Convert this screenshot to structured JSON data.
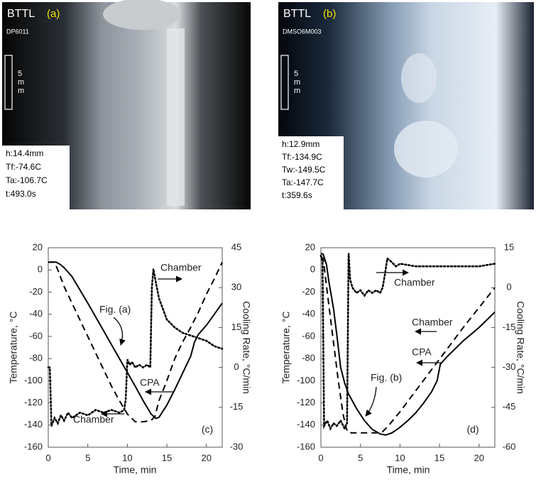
{
  "panels": [
    {
      "brand": "BTTL",
      "label": "(a)",
      "sample": "DP6011",
      "scale": [
        "5",
        "m",
        "m"
      ],
      "readouts": [
        "h:14.4mm",
        "Tf:-74.6C",
        "Ta:-106.7C",
        "t:493.0s"
      ]
    },
    {
      "brand": "BTTL",
      "label": "(b)",
      "sample": "DMSO6M003",
      "scale": [
        "5",
        "m",
        "m"
      ],
      "readouts": [
        "h:12.9mm",
        "Tf:-134.9C",
        "Tw:-149.5C",
        "Ta:-147.7C",
        "t:359.6s"
      ]
    }
  ],
  "chart_data": [
    {
      "type": "line",
      "panel_label": "(c)",
      "annotation": "Fig. (a)",
      "xlabel": "Time, min",
      "ylabel": "Temperature, °C",
      "y2label": "Cooling Rate, °C/min",
      "xlim": [
        0,
        22
      ],
      "xticks": [
        0,
        5,
        10,
        15,
        20
      ],
      "ylim": [
        -160,
        20
      ],
      "yticks": [
        -160,
        -140,
        -120,
        -100,
        -80,
        -60,
        -40,
        -20,
        0,
        20
      ],
      "y2lim": [
        -30,
        45
      ],
      "y2ticks": [
        -30,
        -15,
        0,
        15,
        30,
        45
      ],
      "series": [
        {
          "name": "CPA",
          "color": "#000000",
          "style": "solid",
          "x": [
            0,
            1,
            1.5,
            2,
            3,
            5,
            7,
            9,
            11,
            12,
            13,
            13.6,
            14,
            15,
            16,
            17,
            18,
            18.5,
            19,
            20,
            21,
            22
          ],
          "values": [
            7,
            7,
            5,
            2,
            -6,
            -30,
            -55,
            -80,
            -105,
            -118,
            -130,
            -134,
            -133,
            -122,
            -108,
            -93,
            -78,
            -65,
            -58,
            -50,
            -40,
            -30
          ]
        },
        {
          "name": "Chamber",
          "color": "#000000",
          "style": "dashed",
          "x": [
            0,
            0.8,
            1.2,
            2,
            4,
            6,
            8,
            9,
            10,
            11,
            12,
            13,
            13.5,
            14,
            15,
            16,
            17,
            18,
            19,
            20,
            21,
            22
          ],
          "values": [
            7,
            7,
            0,
            -15,
            -45,
            -75,
            -105,
            -118,
            -130,
            -137,
            -137,
            -136,
            -132,
            -118,
            -100,
            -80,
            -65,
            -52,
            -38,
            -22,
            -8,
            7
          ]
        },
        {
          "name": "Chamber",
          "color": "#000000",
          "style": "dotted",
          "axis": "y2",
          "x": [
            0,
            0.2,
            0.4,
            0.8,
            1.2,
            1.6,
            2,
            2.5,
            3,
            4,
            5,
            6,
            7,
            8,
            9,
            9.6,
            9.8,
            10,
            10.3,
            10.6,
            11,
            11.5,
            12,
            12.5,
            12.9,
            13.1,
            13.3,
            13.6,
            14,
            14.5,
            15,
            16,
            17,
            18,
            19,
            20,
            21,
            22
          ],
          "values": [
            0,
            0,
            -22,
            -19,
            -21,
            -18,
            -20,
            -17,
            -19,
            -17,
            -18,
            -16,
            -17,
            -16,
            -17,
            -16,
            -12,
            3,
            1,
            2,
            0,
            1,
            0,
            1,
            0,
            30,
            37,
            32,
            26,
            22,
            18,
            15,
            13,
            12,
            11,
            10,
            8,
            7
          ]
        }
      ]
    },
    {
      "type": "line",
      "panel_label": "(d)",
      "annotation": "Fig. (b)",
      "xlabel": "Time, min",
      "ylabel": "Temperature, °C",
      "y2label": "Cooling Rate, °C/min",
      "xlim": [
        0,
        22
      ],
      "xticks": [
        0,
        5,
        10,
        15,
        20
      ],
      "ylim": [
        -160,
        20
      ],
      "yticks": [
        -160,
        -140,
        -120,
        -100,
        -80,
        -60,
        -40,
        -20,
        0,
        20
      ],
      "y2lim": [
        -60,
        15
      ],
      "y2ticks": [
        -60,
        -45,
        -30,
        -15,
        0,
        15
      ],
      "series": [
        {
          "name": "CPA",
          "color": "#000000",
          "style": "solid",
          "x": [
            0,
            0.3,
            0.7,
            1,
            1.6,
            2,
            2.5,
            3,
            3.5,
            4.5,
            5.5,
            6.5,
            7.5,
            8.2,
            9,
            10,
            11,
            12,
            13,
            14,
            14.7,
            15.1,
            16,
            17,
            18,
            19,
            20,
            21,
            22
          ],
          "values": [
            15,
            14,
            5,
            -10,
            -35,
            -58,
            -88,
            -102,
            -112,
            -125,
            -136,
            -144,
            -148,
            -149,
            -147,
            -142,
            -136,
            -129,
            -120,
            -110,
            -100,
            -85,
            -78,
            -71,
            -64,
            -58,
            -52,
            -45,
            -38
          ]
        },
        {
          "name": "Chamber",
          "color": "#000000",
          "style": "dashed",
          "x": [
            0,
            0.3,
            0.8,
            1.5,
            2.2,
            2.8,
            3.2,
            3.5,
            4,
            5,
            6,
            7,
            7.8,
            8.5,
            10,
            12,
            14,
            16,
            18,
            20,
            22
          ],
          "values": [
            12,
            10,
            -20,
            -60,
            -100,
            -130,
            -143,
            -147,
            -147,
            -147,
            -147,
            -147,
            -146,
            -141,
            -128,
            -109,
            -90,
            -71,
            -52,
            -34,
            -16
          ]
        },
        {
          "name": "Chamber",
          "color": "#000000",
          "style": "dotted",
          "axis": "y2",
          "x": [
            0,
            0.2,
            0.4,
            0.8,
            1.2,
            1.6,
            2,
            2.5,
            3,
            3.3,
            3.5,
            3.7,
            4,
            4.5,
            5,
            5.5,
            6,
            6.5,
            7,
            7.5,
            7.8,
            8.1,
            8.4,
            8.8,
            9.5,
            10,
            12,
            14,
            16,
            18,
            20,
            22
          ],
          "values": [
            12,
            10,
            -52,
            -50,
            -53,
            -51,
            -52,
            -50,
            -53,
            -51,
            13,
            3,
            0,
            -2,
            -1,
            -3,
            -1,
            -2,
            -1,
            -2,
            0,
            5,
            11,
            10,
            8,
            9,
            8,
            8,
            8,
            8,
            8,
            9
          ]
        }
      ]
    }
  ]
}
